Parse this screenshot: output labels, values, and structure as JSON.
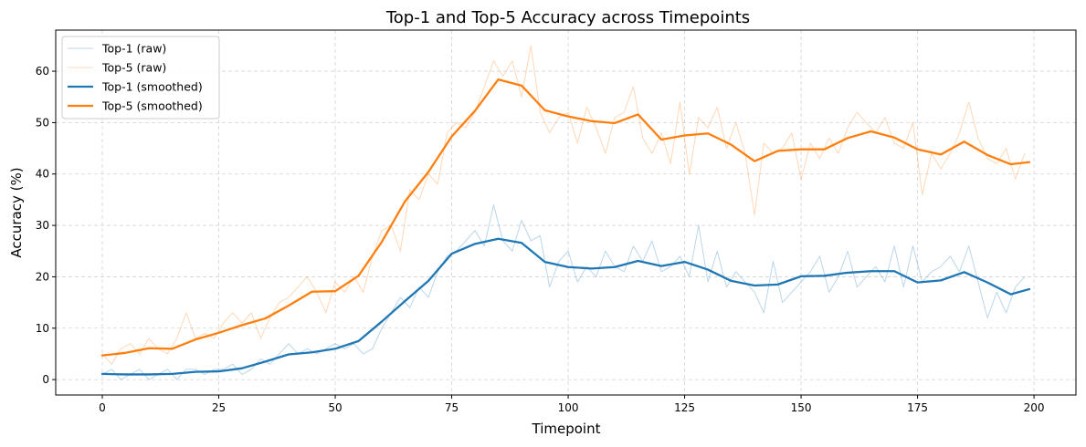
{
  "chart_data": {
    "type": "line",
    "title": "Top-1 and Top-5 Accuracy across Timepoints",
    "xlabel": "Timepoint",
    "ylabel": "Accuracy (%)",
    "xlim": [
      -10,
      209
    ],
    "ylim": [
      -3,
      68
    ],
    "xticks": [
      0,
      25,
      50,
      75,
      100,
      125,
      150,
      175,
      200
    ],
    "yticks": [
      0,
      10,
      20,
      30,
      40,
      50,
      60
    ],
    "grid": true,
    "legend_position": "top-left",
    "series": [
      {
        "name": "Top-1 (raw)",
        "color": "#1f77b4",
        "style": "raw",
        "x": [
          0,
          2,
          4,
          6,
          8,
          10,
          12,
          14,
          16,
          18,
          20,
          22,
          24,
          26,
          28,
          30,
          32,
          34,
          36,
          38,
          40,
          42,
          44,
          46,
          48,
          50,
          52,
          54,
          56,
          58,
          60,
          62,
          64,
          66,
          68,
          70,
          72,
          74,
          76,
          78,
          80,
          82,
          84,
          86,
          88,
          90,
          92,
          94,
          96,
          98,
          100,
          102,
          104,
          106,
          108,
          110,
          112,
          114,
          116,
          118,
          120,
          122,
          124,
          126,
          128,
          130,
          132,
          134,
          136,
          138,
          140,
          142,
          144,
          146,
          148,
          150,
          152,
          154,
          156,
          158,
          160,
          162,
          164,
          166,
          168,
          170,
          172,
          174,
          176,
          178,
          180,
          182,
          184,
          186,
          188,
          190,
          192,
          194,
          196,
          198
        ],
        "values": [
          1,
          2,
          0,
          1,
          2,
          0,
          1,
          2,
          0,
          2,
          2,
          1,
          2,
          2,
          3,
          1,
          2,
          4,
          3,
          5,
          7,
          5,
          6,
          5,
          6,
          7,
          6,
          7,
          5,
          6,
          10,
          13,
          16,
          14,
          18,
          16,
          21,
          24,
          25,
          27,
          29,
          26,
          34,
          27,
          25,
          31,
          27,
          28,
          18,
          23,
          25,
          19,
          22,
          20,
          25,
          22,
          21,
          26,
          23,
          27,
          21,
          22,
          24,
          20,
          30,
          19,
          25,
          18,
          21,
          19,
          17,
          13,
          23,
          15,
          17,
          19,
          21,
          24,
          17,
          20,
          25,
          18,
          20,
          22,
          19,
          26,
          18,
          26,
          19,
          21,
          22,
          24,
          21,
          26,
          19,
          12,
          17,
          13,
          18,
          20
        ]
      },
      {
        "name": "Top-5 (raw)",
        "color": "#ff7f0e",
        "style": "raw",
        "x": [
          0,
          2,
          4,
          6,
          8,
          10,
          12,
          14,
          16,
          18,
          20,
          22,
          24,
          26,
          28,
          30,
          32,
          34,
          36,
          38,
          40,
          42,
          44,
          46,
          48,
          50,
          52,
          54,
          56,
          58,
          60,
          62,
          64,
          66,
          68,
          70,
          72,
          74,
          76,
          78,
          80,
          82,
          84,
          86,
          88,
          90,
          92,
          94,
          96,
          98,
          100,
          102,
          104,
          106,
          108,
          110,
          112,
          114,
          116,
          118,
          120,
          122,
          124,
          126,
          128,
          130,
          132,
          134,
          136,
          138,
          140,
          142,
          144,
          146,
          148,
          150,
          152,
          154,
          156,
          158,
          160,
          162,
          164,
          166,
          168,
          170,
          172,
          174,
          176,
          178,
          180,
          182,
          184,
          186,
          188,
          190,
          192,
          194,
          196,
          198
        ],
        "values": [
          5,
          3,
          6,
          7,
          5,
          8,
          6,
          5,
          8,
          13,
          8,
          9,
          8,
          11,
          13,
          11,
          13,
          8,
          12,
          15,
          16,
          18,
          20,
          17,
          13,
          19,
          17,
          20,
          17,
          24,
          29,
          30,
          25,
          37,
          35,
          40,
          38,
          48,
          50,
          49,
          52,
          57,
          62,
          59,
          62,
          55,
          65,
          52,
          48,
          51,
          52,
          46,
          53,
          49,
          44,
          51,
          52,
          57,
          47,
          44,
          48,
          42,
          54,
          40,
          51,
          49,
          53,
          45,
          50,
          44,
          32,
          46,
          44,
          45,
          48,
          39,
          46,
          43,
          47,
          44,
          49,
          52,
          50,
          48,
          51,
          46,
          45,
          50,
          36,
          44,
          41,
          44,
          48,
          54,
          47,
          43,
          42,
          45,
          39,
          44
        ]
      },
      {
        "name": "Top-1 (smoothed)",
        "color": "#1f77b4",
        "style": "smoothed",
        "x": [
          0,
          5,
          10,
          15,
          20,
          25,
          30,
          35,
          40,
          45,
          50,
          55,
          60,
          65,
          70,
          75,
          80,
          85,
          90,
          95,
          100,
          105,
          110,
          115,
          120,
          125,
          130,
          135,
          140,
          145,
          150,
          155,
          160,
          165,
          170,
          175,
          180,
          185,
          190,
          195,
          199
        ],
        "values": [
          1.1,
          1.0,
          1.0,
          1.1,
          1.5,
          1.6,
          2.2,
          3.5,
          4.9,
          5.3,
          6.0,
          7.5,
          11.3,
          15.3,
          19.2,
          24.5,
          26.4,
          27.4,
          26.6,
          22.9,
          21.9,
          21.6,
          21.9,
          23.1,
          22.1,
          22.9,
          21.4,
          19.2,
          18.3,
          18.5,
          20.1,
          20.2,
          20.8,
          21.1,
          21.1,
          18.9,
          19.3,
          20.9,
          18.9,
          16.6,
          17.6
        ]
      },
      {
        "name": "Top-5 (smoothed)",
        "color": "#ff7f0e",
        "style": "smoothed",
        "x": [
          0,
          5,
          10,
          15,
          20,
          25,
          30,
          35,
          40,
          45,
          50,
          55,
          60,
          65,
          70,
          75,
          80,
          85,
          90,
          95,
          100,
          105,
          110,
          115,
          120,
          125,
          130,
          135,
          140,
          145,
          150,
          155,
          160,
          165,
          170,
          175,
          180,
          185,
          190,
          195,
          199
        ],
        "values": [
          4.7,
          5.2,
          6.1,
          6.0,
          7.8,
          9.1,
          10.6,
          11.9,
          14.4,
          17.1,
          17.2,
          20.2,
          26.8,
          34.7,
          40.4,
          47.3,
          52.3,
          58.4,
          57.2,
          52.4,
          51.2,
          50.3,
          49.9,
          51.6,
          46.7,
          47.5,
          47.9,
          45.7,
          42.5,
          44.5,
          44.8,
          44.8,
          47.0,
          48.3,
          47.1,
          44.8,
          43.8,
          46.3,
          43.7,
          41.9,
          42.3
        ]
      }
    ]
  }
}
